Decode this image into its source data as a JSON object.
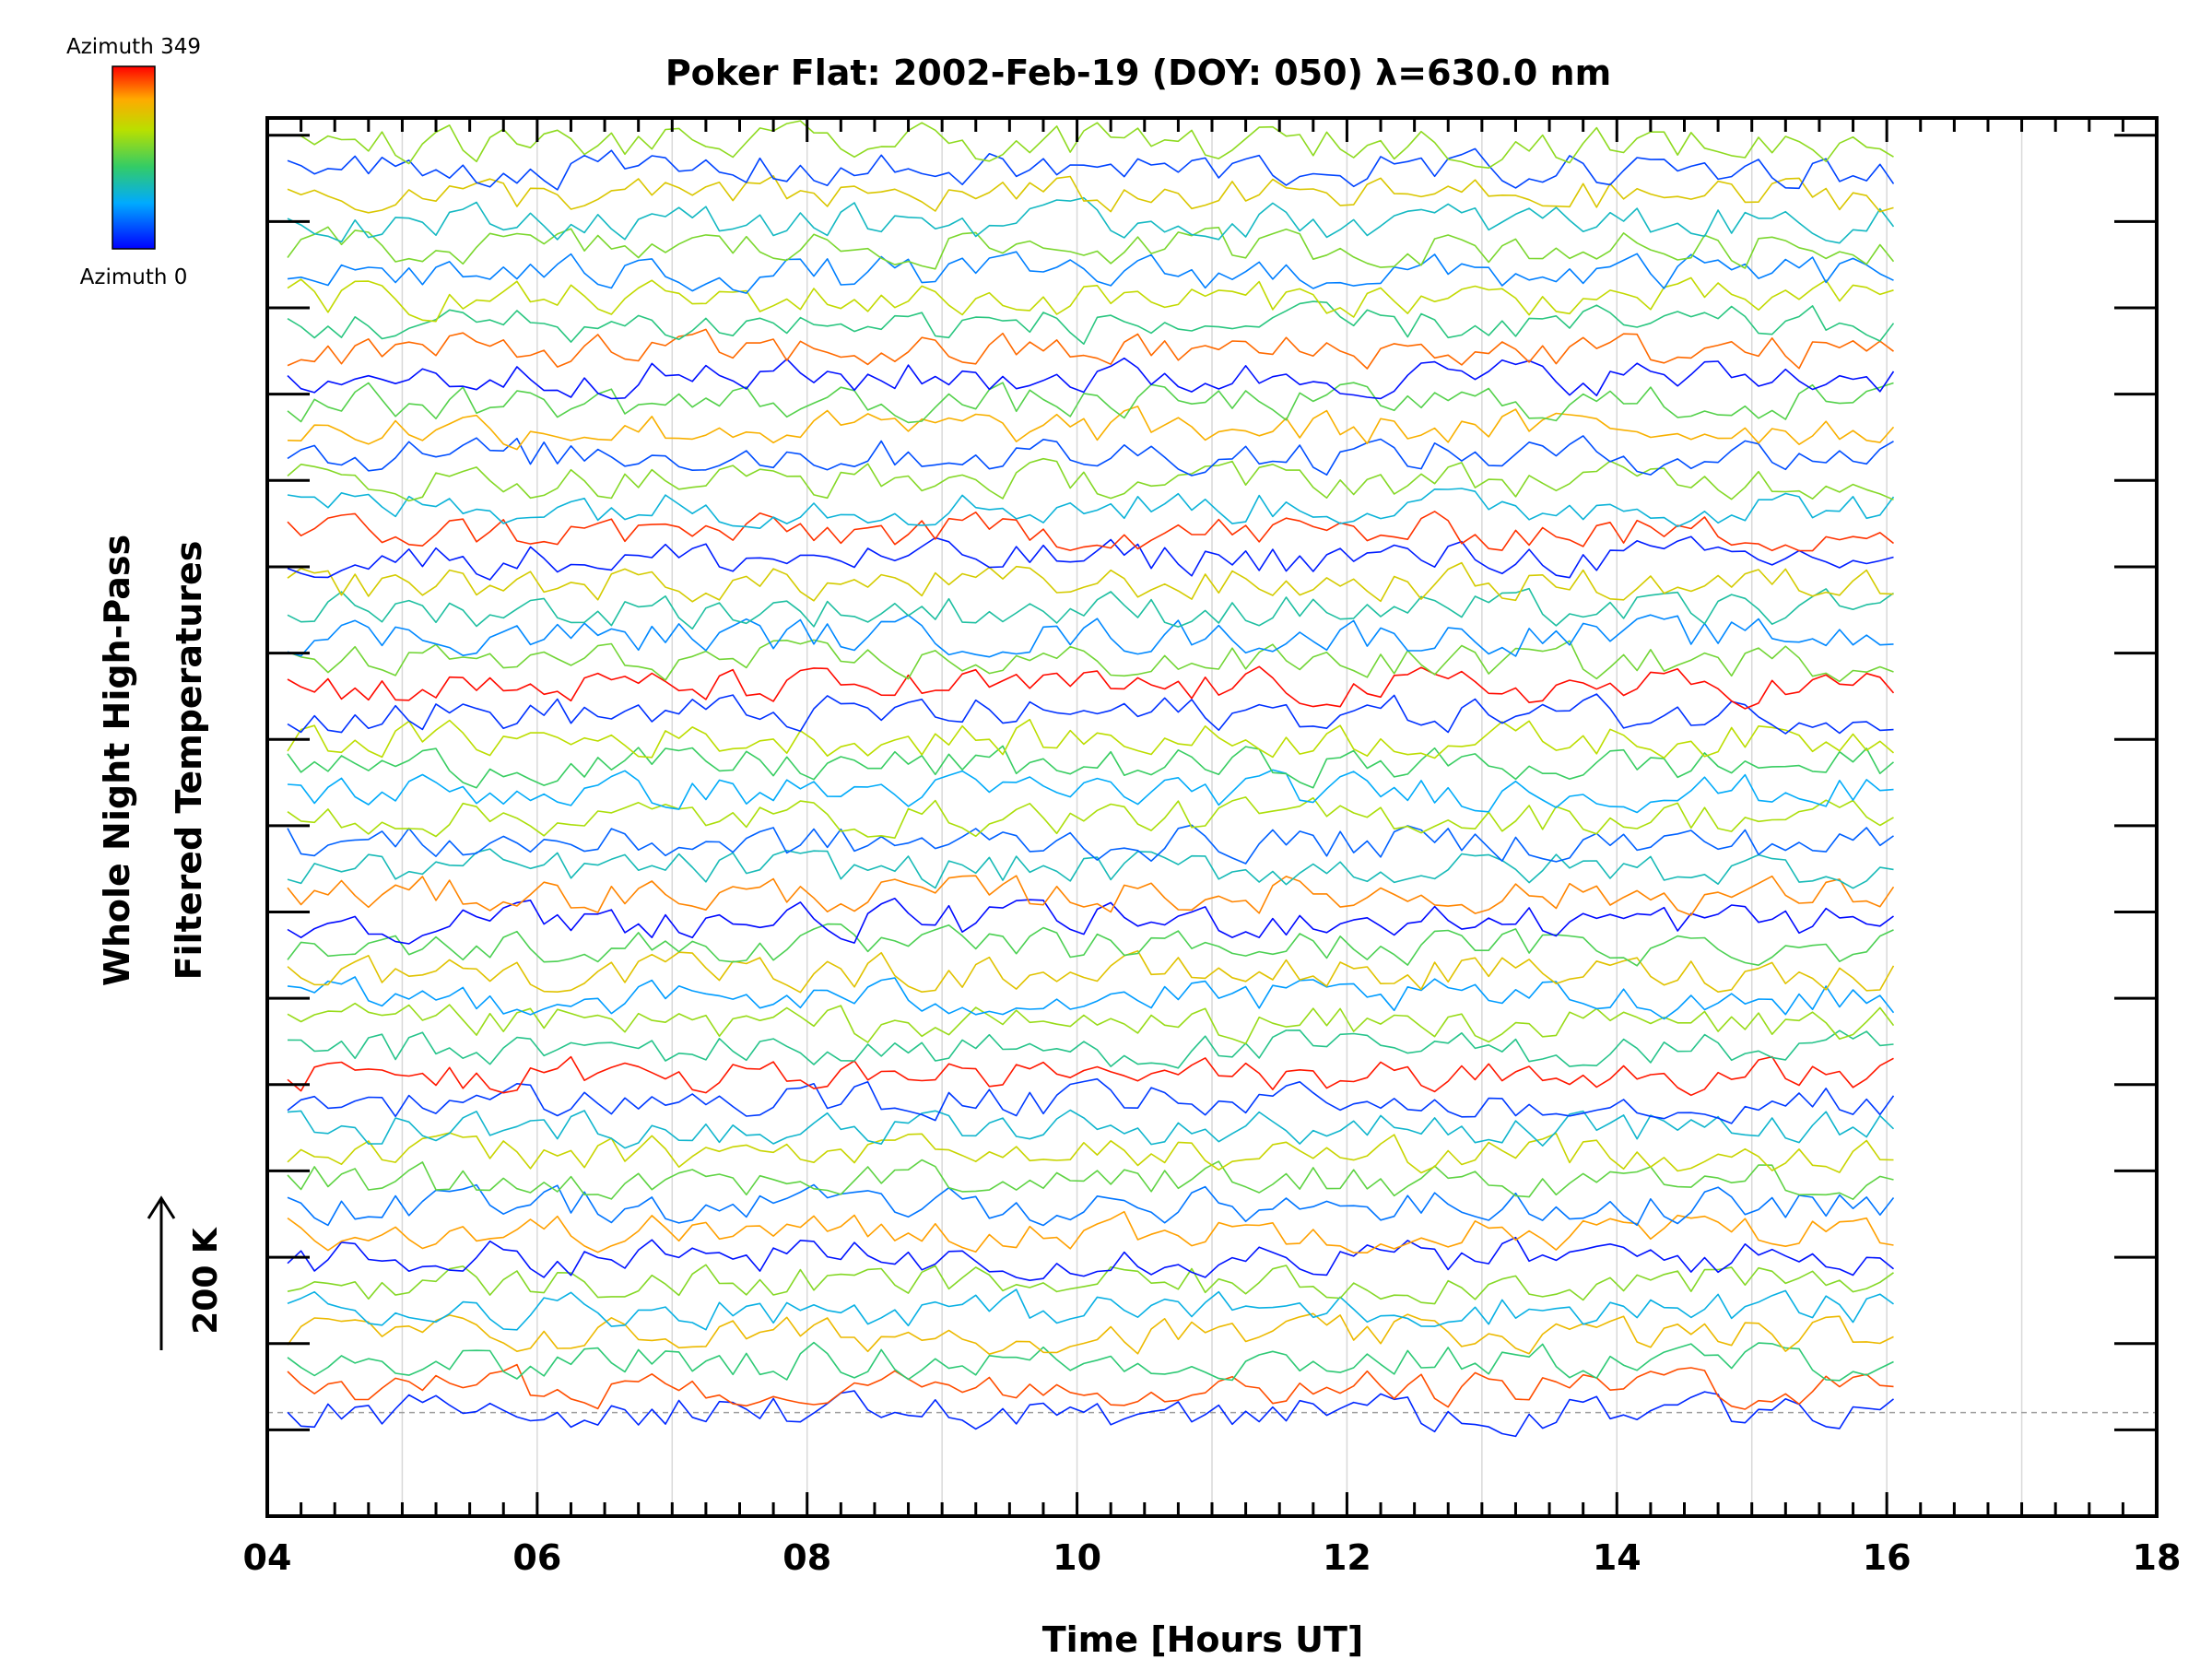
{
  "chart_data": {
    "type": "line",
    "title": "Poker Flat: 2002-Feb-19 (DOY: 050) λ=630.0 nm",
    "xlabel": "Time [Hours UT]",
    "ylabel_line1": "Whole Night High-Pass",
    "ylabel_line2": "Filtered Temperatures",
    "xlim": [
      4,
      18
    ],
    "x_ticks": [
      "04",
      "06",
      "08",
      "10",
      "12",
      "14",
      "16",
      "18"
    ],
    "x_tick_values": [
      4,
      6,
      8,
      10,
      12,
      14,
      16,
      18
    ],
    "grid": "vertical lines each hour",
    "ylim_kelvin": [
      -300,
      3750
    ],
    "y_tick_step_kelvin": 250,
    "baseline_kelvin": 0,
    "scale_bar": {
      "label": "200 K",
      "value_kelvin": 200
    },
    "colorbar": {
      "top_label": "Azimuth 349",
      "bottom_label": "Azimuth 0",
      "min": 0,
      "max": 349
    },
    "time_range": [
      4.15,
      16.05
    ],
    "sample_step_hours": 0.1,
    "offset_step_kelvin": 75,
    "noise_amplitude_kelvin": 48,
    "series_azimuths": [
      20,
      320,
      150,
      270,
      100,
      200,
      10,
      290,
      60,
      180,
      240,
      110,
      30,
      340,
      140,
      210,
      80,
      260,
      170,
      5,
      300,
      120,
      50,
      220,
      90,
      160,
      230,
      25,
      345,
      190,
      70,
      130,
      250,
      15,
      330,
      105,
      200,
      40,
      280,
      175,
      8,
      310,
      145,
      235,
      65,
      195,
      115,
      255,
      35,
      205
    ]
  },
  "colors": {
    "axes": "#000000",
    "grid": "#d9d9d9",
    "baseline": "#9e9e9e"
  }
}
